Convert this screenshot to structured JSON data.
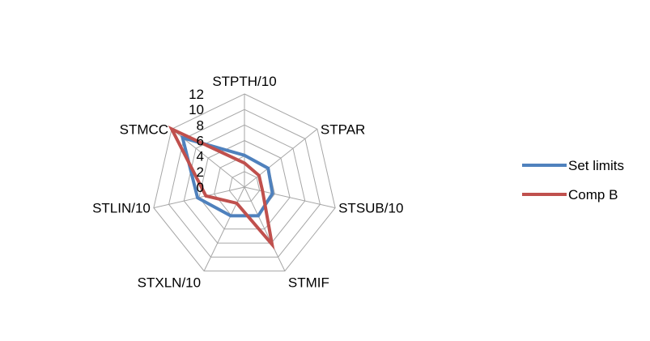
{
  "chart_data": {
    "type": "radar",
    "categories": [
      "STPTH/10",
      "STPAR",
      "STSUB/10",
      "STMIF",
      "STXLN/10",
      "STLIN/10",
      "STMCC"
    ],
    "r_ticks": [
      0,
      2,
      4,
      6,
      8,
      10,
      12
    ],
    "r_range": [
      0,
      12
    ],
    "grid": true,
    "legend_position": "right",
    "series": [
      {
        "name": "Set limits",
        "color": "#4f81bd",
        "values": [
          4.1,
          3.9,
          3.7,
          4.1,
          4.1,
          6.2,
          10.2
        ]
      },
      {
        "name": "Comp B",
        "color": "#c0504d",
        "values": [
          3.1,
          2.4,
          2.4,
          8.2,
          2.3,
          5.1,
          12.0
        ]
      }
    ]
  }
}
